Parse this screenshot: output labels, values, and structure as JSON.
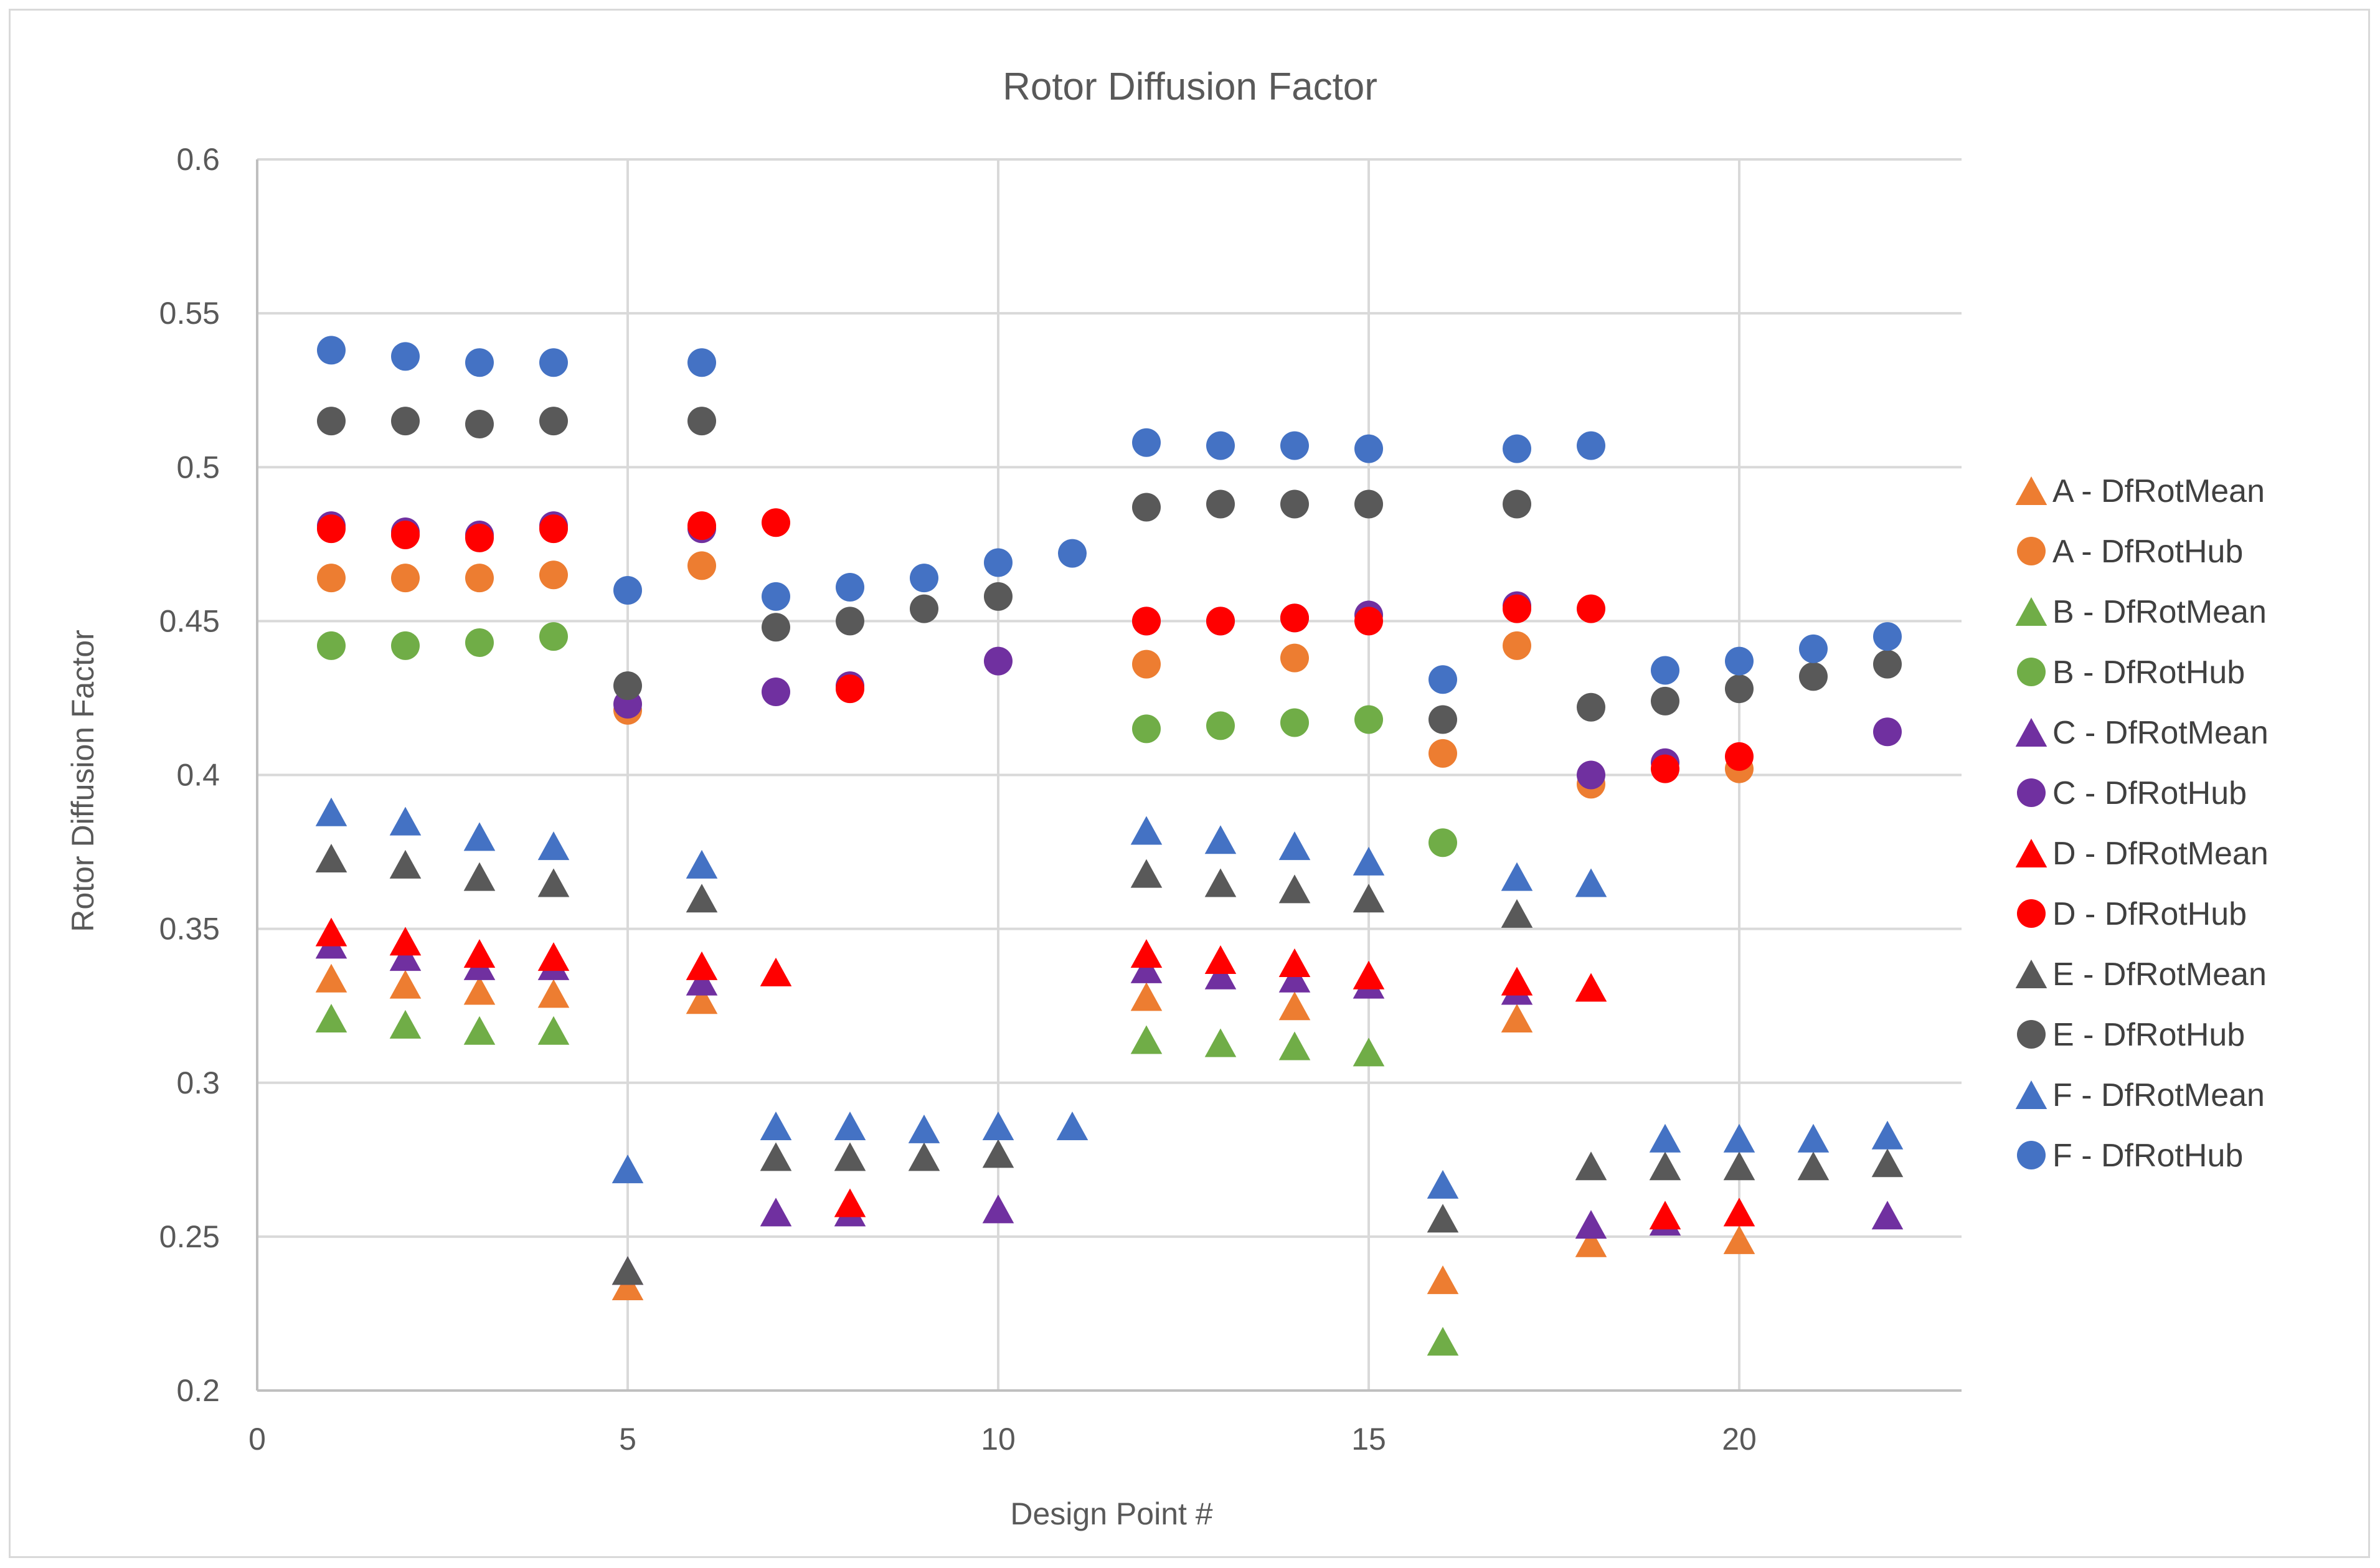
{
  "chart_data": {
    "type": "scatter",
    "title": "Rotor Diffusion Factor",
    "xlabel": "Design Point #",
    "ylabel": "Rotor Diffusion Factor",
    "xlim": [
      0,
      23
    ],
    "ylim": [
      0.2,
      0.6
    ],
    "x_ticks": [
      0,
      5,
      10,
      15,
      20
    ],
    "x_tick_labels": [
      "0",
      "5",
      "10",
      "15",
      "20"
    ],
    "y_ticks": [
      0.2,
      0.25,
      0.3,
      0.35,
      0.4,
      0.45,
      0.5,
      0.55,
      0.6
    ],
    "y_tick_labels": [
      "0.2",
      "0.25",
      "0.3",
      "0.35",
      "0.4",
      "0.45",
      "0.5",
      "0.55",
      "0.6"
    ],
    "grid": true,
    "legend_position": "right",
    "series": [
      {
        "name": "A - DfRotMean",
        "marker": "triangle",
        "color": "#ED7D31",
        "points": [
          [
            1,
            0.334
          ],
          [
            2,
            0.332
          ],
          [
            3,
            0.33
          ],
          [
            4,
            0.329
          ],
          [
            5,
            0.234
          ],
          [
            6,
            0.327
          ],
          [
            12,
            0.328
          ],
          [
            14,
            0.325
          ],
          [
            16,
            0.236
          ],
          [
            17,
            0.321
          ],
          [
            18,
            0.248
          ],
          [
            20,
            0.249
          ]
        ]
      },
      {
        "name": "A - DfRotHub",
        "marker": "circle",
        "color": "#ED7D31",
        "points": [
          [
            1,
            0.464
          ],
          [
            2,
            0.464
          ],
          [
            3,
            0.464
          ],
          [
            4,
            0.465
          ],
          [
            5,
            0.421
          ],
          [
            6,
            0.468
          ],
          [
            12,
            0.436
          ],
          [
            14,
            0.438
          ],
          [
            16,
            0.407
          ],
          [
            17,
            0.442
          ],
          [
            18,
            0.397
          ],
          [
            20,
            0.402
          ]
        ]
      },
      {
        "name": "B - DfRotMean",
        "marker": "triangle",
        "color": "#70AD47",
        "points": [
          [
            1,
            0.321
          ],
          [
            2,
            0.319
          ],
          [
            3,
            0.317
          ],
          [
            4,
            0.317
          ],
          [
            12,
            0.314
          ],
          [
            13,
            0.313
          ],
          [
            14,
            0.312
          ],
          [
            15,
            0.31
          ],
          [
            16,
            0.216
          ]
        ]
      },
      {
        "name": "B - DfRotHub",
        "marker": "circle",
        "color": "#70AD47",
        "points": [
          [
            1,
            0.442
          ],
          [
            2,
            0.442
          ],
          [
            3,
            0.443
          ],
          [
            4,
            0.445
          ],
          [
            12,
            0.415
          ],
          [
            13,
            0.416
          ],
          [
            14,
            0.417
          ],
          [
            15,
            0.418
          ],
          [
            16,
            0.378
          ]
        ]
      },
      {
        "name": "C - DfRotMean",
        "marker": "triangle",
        "color": "#7030A0",
        "points": [
          [
            1,
            0.345
          ],
          [
            2,
            0.341
          ],
          [
            3,
            0.338
          ],
          [
            4,
            0.338
          ],
          [
            5,
            0.239
          ],
          [
            6,
            0.333
          ],
          [
            7,
            0.258
          ],
          [
            8,
            0.258
          ],
          [
            10,
            0.259
          ],
          [
            12,
            0.337
          ],
          [
            13,
            0.335
          ],
          [
            14,
            0.334
          ],
          [
            15,
            0.332
          ],
          [
            17,
            0.33
          ],
          [
            18,
            0.254
          ],
          [
            19,
            0.255
          ],
          [
            22,
            0.257
          ]
        ]
      },
      {
        "name": "C - DfRotHub",
        "marker": "circle",
        "color": "#7030A0",
        "points": [
          [
            1,
            0.481
          ],
          [
            2,
            0.479
          ],
          [
            3,
            0.478
          ],
          [
            4,
            0.481
          ],
          [
            5,
            0.423
          ],
          [
            6,
            0.48
          ],
          [
            7,
            0.427
          ],
          [
            8,
            0.429
          ],
          [
            10,
            0.437
          ],
          [
            12,
            0.45
          ],
          [
            13,
            0.45
          ],
          [
            14,
            0.451
          ],
          [
            15,
            0.452
          ],
          [
            17,
            0.455
          ],
          [
            18,
            0.4
          ],
          [
            19,
            0.404
          ],
          [
            22,
            0.414
          ]
        ]
      },
      {
        "name": "D - DfRotMean",
        "marker": "triangle",
        "color": "#FF0000",
        "points": [
          [
            1,
            0.349
          ],
          [
            2,
            0.346
          ],
          [
            3,
            0.342
          ],
          [
            4,
            0.341
          ],
          [
            6,
            0.338
          ],
          [
            7,
            0.336
          ],
          [
            8,
            0.261
          ],
          [
            12,
            0.342
          ],
          [
            13,
            0.34
          ],
          [
            14,
            0.339
          ],
          [
            15,
            0.335
          ],
          [
            17,
            0.333
          ],
          [
            18,
            0.331
          ],
          [
            19,
            0.257
          ],
          [
            20,
            0.258
          ]
        ]
      },
      {
        "name": "D - DfRotHub",
        "marker": "circle",
        "color": "#FF0000",
        "points": [
          [
            1,
            0.48
          ],
          [
            2,
            0.478
          ],
          [
            3,
            0.477
          ],
          [
            4,
            0.48
          ],
          [
            6,
            0.481
          ],
          [
            7,
            0.482
          ],
          [
            8,
            0.428
          ],
          [
            12,
            0.45
          ],
          [
            13,
            0.45
          ],
          [
            14,
            0.451
          ],
          [
            15,
            0.45
          ],
          [
            17,
            0.454
          ],
          [
            18,
            0.454
          ],
          [
            19,
            0.402
          ],
          [
            20,
            0.406
          ]
        ]
      },
      {
        "name": "E - DfRotMean",
        "marker": "triangle",
        "color": "#595959",
        "points": [
          [
            1,
            0.373
          ],
          [
            2,
            0.371
          ],
          [
            3,
            0.367
          ],
          [
            4,
            0.365
          ],
          [
            5,
            0.239
          ],
          [
            6,
            0.36
          ],
          [
            7,
            0.276
          ],
          [
            8,
            0.276
          ],
          [
            9,
            0.276
          ],
          [
            10,
            0.277
          ],
          [
            12,
            0.368
          ],
          [
            13,
            0.365
          ],
          [
            14,
            0.363
          ],
          [
            15,
            0.36
          ],
          [
            16,
            0.256
          ],
          [
            17,
            0.355
          ],
          [
            18,
            0.273
          ],
          [
            19,
            0.273
          ],
          [
            20,
            0.273
          ],
          [
            21,
            0.273
          ],
          [
            22,
            0.274
          ]
        ]
      },
      {
        "name": "E - DfRotHub",
        "marker": "circle",
        "color": "#595959",
        "points": [
          [
            1,
            0.515
          ],
          [
            2,
            0.515
          ],
          [
            3,
            0.514
          ],
          [
            4,
            0.515
          ],
          [
            5,
            0.429
          ],
          [
            6,
            0.515
          ],
          [
            7,
            0.448
          ],
          [
            8,
            0.45
          ],
          [
            9,
            0.454
          ],
          [
            10,
            0.458
          ],
          [
            12,
            0.487
          ],
          [
            13,
            0.488
          ],
          [
            14,
            0.488
          ],
          [
            15,
            0.488
          ],
          [
            16,
            0.418
          ],
          [
            17,
            0.488
          ],
          [
            18,
            0.422
          ],
          [
            19,
            0.424
          ],
          [
            20,
            0.428
          ],
          [
            21,
            0.432
          ],
          [
            22,
            0.436
          ]
        ]
      },
      {
        "name": "F - DfRotMean",
        "marker": "triangle",
        "color": "#4472C4",
        "points": [
          [
            1,
            0.388
          ],
          [
            2,
            0.385
          ],
          [
            3,
            0.38
          ],
          [
            4,
            0.377
          ],
          [
            5,
            0.272
          ],
          [
            6,
            0.371
          ],
          [
            7,
            0.286
          ],
          [
            8,
            0.286
          ],
          [
            9,
            0.285
          ],
          [
            10,
            0.286
          ],
          [
            11,
            0.286
          ],
          [
            12,
            0.382
          ],
          [
            13,
            0.379
          ],
          [
            14,
            0.377
          ],
          [
            15,
            0.372
          ],
          [
            16,
            0.267
          ],
          [
            17,
            0.367
          ],
          [
            18,
            0.365
          ],
          [
            19,
            0.282
          ],
          [
            20,
            0.282
          ],
          [
            21,
            0.282
          ],
          [
            22,
            0.283
          ]
        ]
      },
      {
        "name": "F - DfRotHub",
        "marker": "circle",
        "color": "#4472C4",
        "points": [
          [
            1,
            0.538
          ],
          [
            2,
            0.536
          ],
          [
            3,
            0.534
          ],
          [
            4,
            0.534
          ],
          [
            5,
            0.46
          ],
          [
            6,
            0.534
          ],
          [
            7,
            0.458
          ],
          [
            8,
            0.461
          ],
          [
            9,
            0.464
          ],
          [
            10,
            0.469
          ],
          [
            11,
            0.472
          ],
          [
            12,
            0.508
          ],
          [
            13,
            0.507
          ],
          [
            14,
            0.507
          ],
          [
            15,
            0.506
          ],
          [
            16,
            0.431
          ],
          [
            17,
            0.506
          ],
          [
            18,
            0.507
          ],
          [
            19,
            0.434
          ],
          [
            20,
            0.437
          ],
          [
            21,
            0.441
          ],
          [
            22,
            0.445
          ]
        ]
      }
    ]
  }
}
